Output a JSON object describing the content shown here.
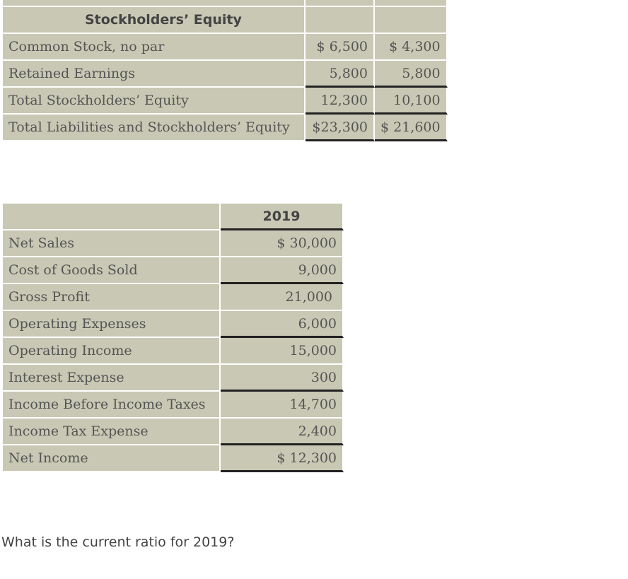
{
  "equity_table": {
    "header": "Stockholders’ Equity",
    "rows": [
      {
        "label": "Common Stock, no par",
        "col1": "$ 6,500",
        "col2": "$ 4,300"
      },
      {
        "label": "Retained Earnings",
        "col1": "5,800",
        "col2": "5,800"
      },
      {
        "label": "Total Stockholders’ Equity",
        "col1": "12,300",
        "col2": "10,100"
      },
      {
        "label": "Total Liabilities and Stockholders’ Equity",
        "col1": "$23,300",
        "col2": "$ 21,600"
      }
    ]
  },
  "income_table": {
    "year_header": "2019",
    "rows": [
      {
        "label": "Net Sales",
        "value": "$ 30,000"
      },
      {
        "label": "Cost of Goods Sold",
        "value": "9,000"
      },
      {
        "label": "Gross Profit",
        "value": "21,000"
      },
      {
        "label": "Operating Expenses",
        "value": "6,000"
      },
      {
        "label": "Operating Income",
        "value": "15,000"
      },
      {
        "label": "Interest Expense",
        "value": "300"
      },
      {
        "label": "Income Before Income Taxes",
        "value": "14,700"
      },
      {
        "label": "Income Tax Expense",
        "value": "2,400"
      },
      {
        "label": "Net Income",
        "value": "$ 12,300"
      }
    ]
  },
  "question": "What is the current ratio for 2019?"
}
